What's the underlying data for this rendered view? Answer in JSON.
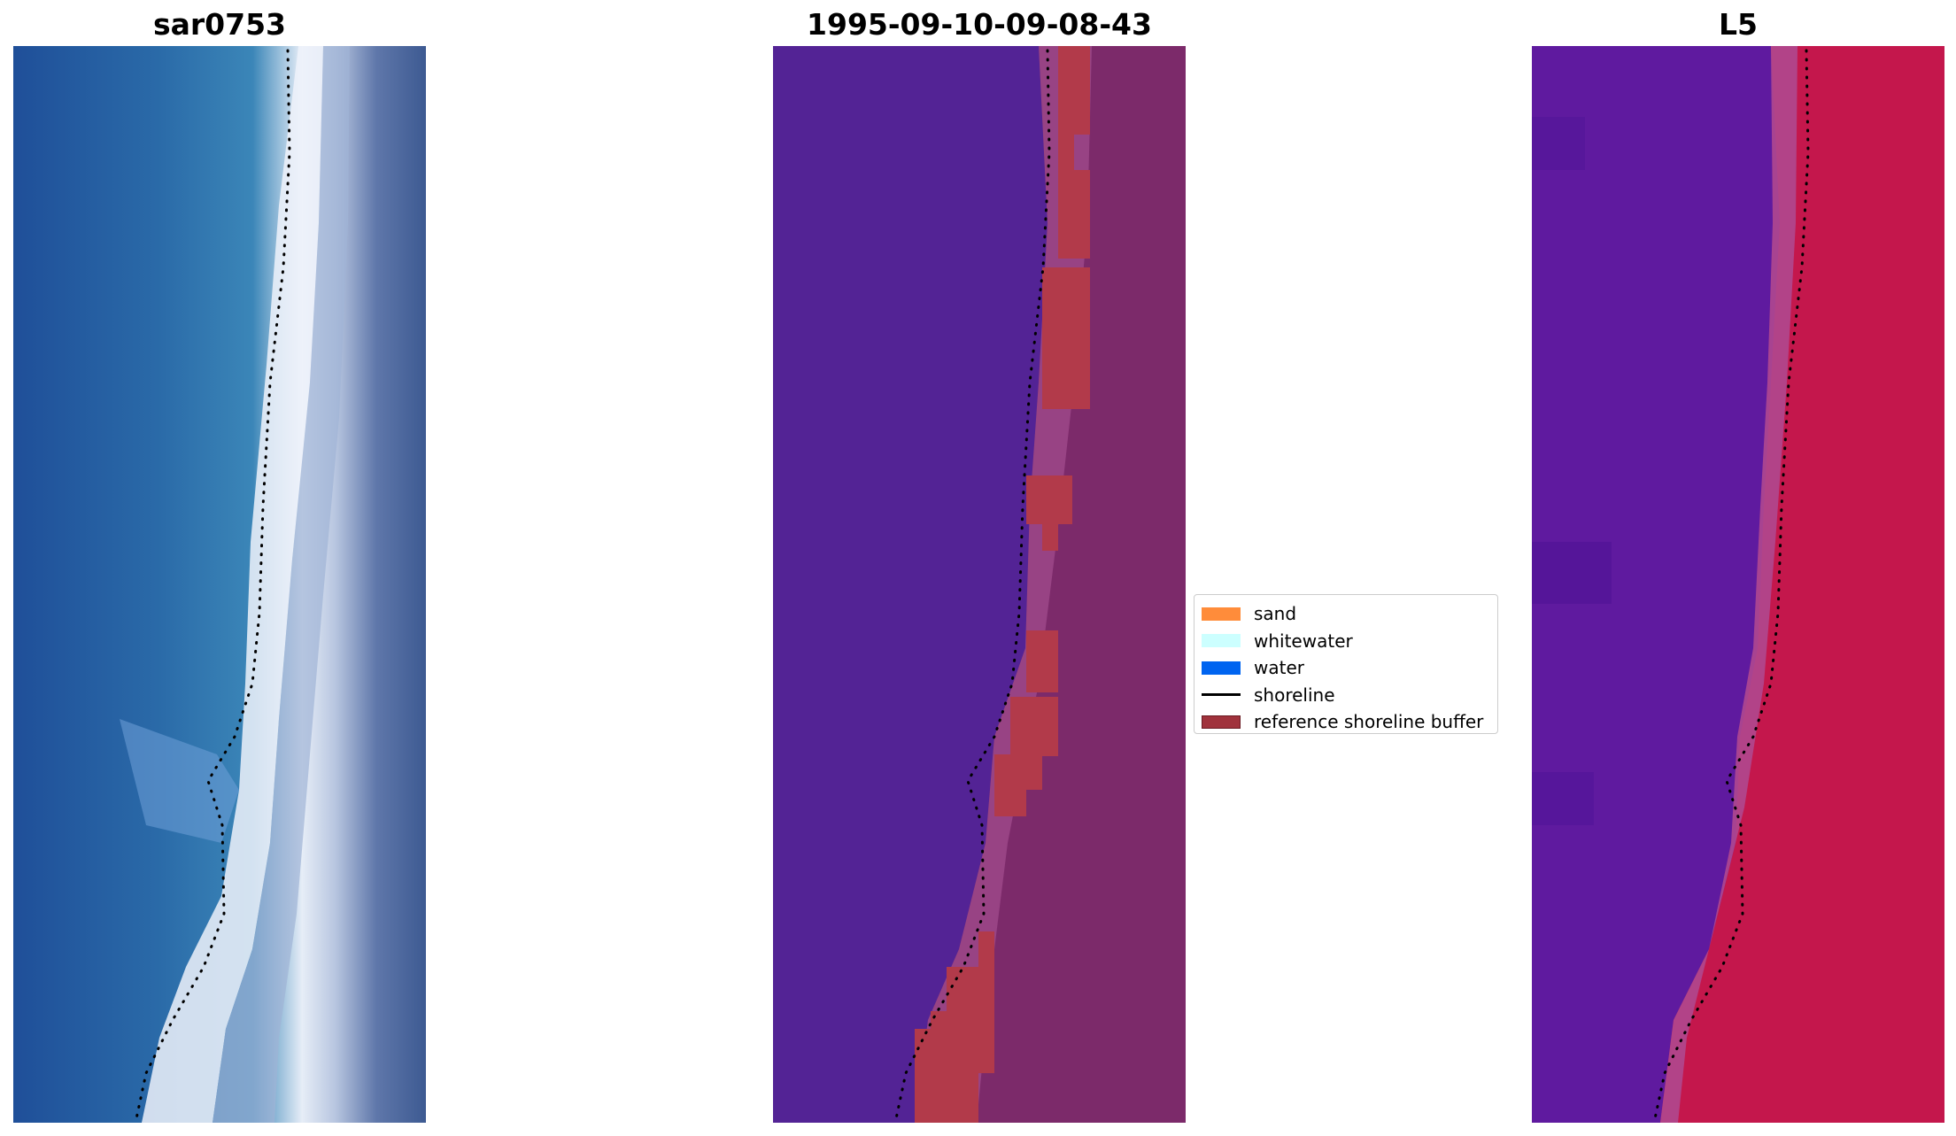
{
  "panels": [
    {
      "title": "sar0753",
      "image": "rgb-satellite-crop"
    },
    {
      "title": "1995-09-10-09-08-43",
      "image": "classified-crop"
    },
    {
      "title": "L5",
      "image": "index-crop"
    }
  ],
  "legend": {
    "items": [
      {
        "label": "sand",
        "type": "patch",
        "color": "#ff8c3a"
      },
      {
        "label": "whitewater",
        "type": "patch",
        "color": "#ccffff"
      },
      {
        "label": "water",
        "type": "patch",
        "color": "#0064f0"
      },
      {
        "label": "shoreline",
        "type": "line",
        "color": "#000000"
      },
      {
        "label": "reference shoreline buffer",
        "type": "patch",
        "color": "#a0323c"
      }
    ]
  },
  "colors": {
    "water_rgb": "#2f6aa8",
    "whitewater_rgb": "#e8eef8",
    "land_rgb": "#4a5f95",
    "classified_water": "#532395",
    "buffer": "#b23a4a",
    "land_overlay": "#7c2a6a",
    "index_low": "#5a17a0",
    "index_high": "#c01848"
  }
}
